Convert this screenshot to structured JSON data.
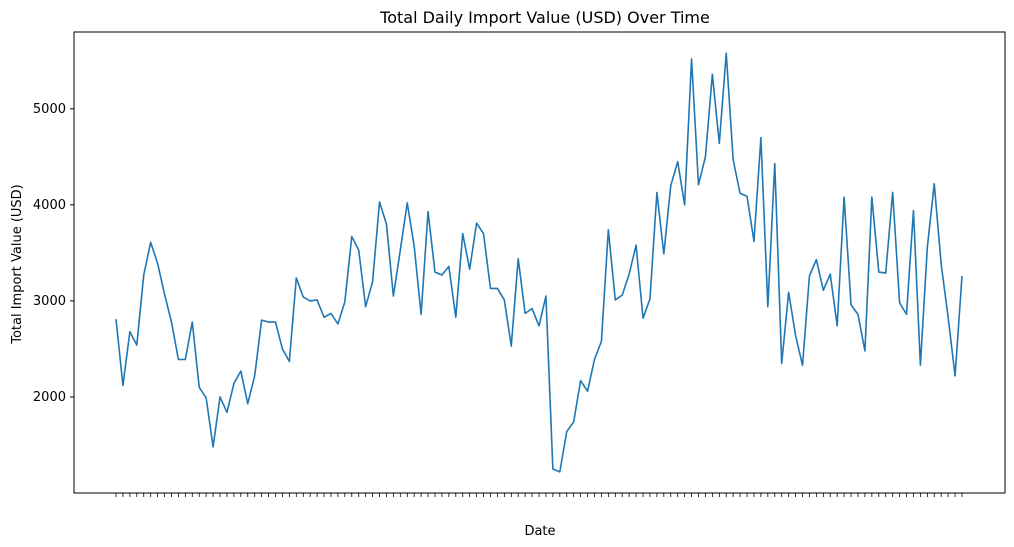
{
  "chart_data": {
    "type": "line",
    "title": "Total Daily Import Value (USD) Over Time",
    "xlabel": "Date",
    "ylabel": "Total Import Value (USD)",
    "ylim": [
      1000,
      5800
    ],
    "yticks": [
      2000,
      3000,
      4000,
      5000
    ],
    "grid": false,
    "colors": {
      "line": "#1f77b4"
    },
    "series": [
      {
        "values": [
          2810,
          2120,
          2680,
          2540,
          3270,
          3610,
          3390,
          3070,
          2780,
          2390,
          2390,
          2780,
          2100,
          1990,
          1480,
          2000,
          1840,
          2140,
          2270,
          1930,
          2220,
          2800,
          2780,
          2780,
          2500,
          2370,
          3240,
          3040,
          3000,
          3010,
          2830,
          2870,
          2760,
          2990,
          3670,
          3530,
          2940,
          3200,
          4030,
          3800,
          3050,
          3530,
          4020,
          3570,
          2860,
          3930,
          3300,
          3270,
          3360,
          2830,
          3700,
          3330,
          3810,
          3700,
          3130,
          3130,
          3010,
          2530,
          3440,
          2870,
          2920,
          2740,
          3050,
          1250,
          1220,
          1640,
          1740,
          2170,
          2060,
          2390,
          2580,
          3740,
          3010,
          3060,
          3280,
          3580,
          2820,
          3020,
          4130,
          3490,
          4200,
          4450,
          4000,
          5520,
          4210,
          4500,
          5360,
          4640,
          5580,
          4470,
          4120,
          4090,
          3620,
          4700,
          2940,
          4430,
          2350,
          3090,
          2640,
          2330,
          3260,
          3430,
          3110,
          3280,
          2740,
          4080,
          2960,
          2860,
          2480,
          4080,
          3300,
          3290,
          4130,
          2980,
          2860,
          3940,
          2330,
          3560,
          4220,
          3380,
          2830,
          2220,
          3260
        ]
      }
    ]
  }
}
